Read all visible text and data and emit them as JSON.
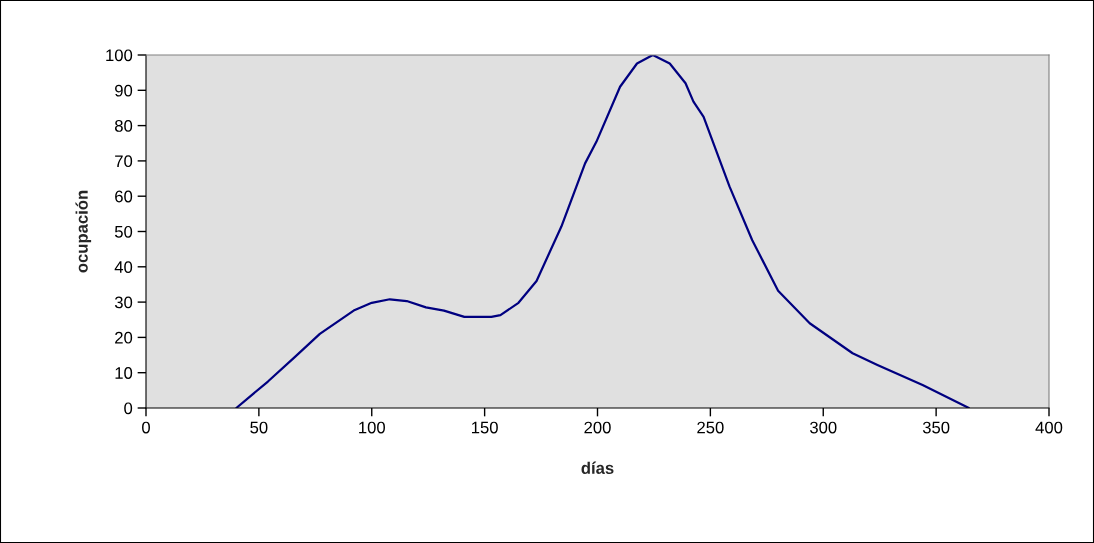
{
  "chart_data": {
    "type": "line",
    "xlabel": "días",
    "ylabel": "ocupación",
    "x": [
      40,
      54,
      66,
      77,
      92,
      100,
      108,
      115.5,
      124,
      132,
      141,
      153,
      157,
      165,
      173,
      184,
      194.5,
      199.5,
      210,
      217.5,
      224.5,
      232,
      239,
      242.5,
      247,
      258.5,
      268.5,
      280,
      294,
      313,
      324,
      344,
      364.5
    ],
    "series": [
      {
        "color": "#000080",
        "values": [
          0,
          7.5,
          14.5,
          21,
          27.6,
          29.8,
          30.8,
          30.3,
          28.5,
          27.6,
          25.8,
          25.8,
          26.3,
          29.8,
          36,
          51.4,
          69.3,
          75.4,
          91,
          97.6,
          100,
          97.6,
          92,
          86.8,
          82.5,
          62.7,
          47.6,
          33.2,
          24,
          15.5,
          12.2,
          6.5,
          0
        ]
      }
    ],
    "xlim": [
      0,
      400
    ],
    "xticks": [
      0,
      50,
      100,
      150,
      200,
      250,
      300,
      350,
      400
    ],
    "ylim": [
      0,
      100
    ],
    "yticks": [
      0,
      10,
      20,
      30,
      40,
      50,
      60,
      70,
      80,
      90,
      100
    ],
    "grid": false
  }
}
